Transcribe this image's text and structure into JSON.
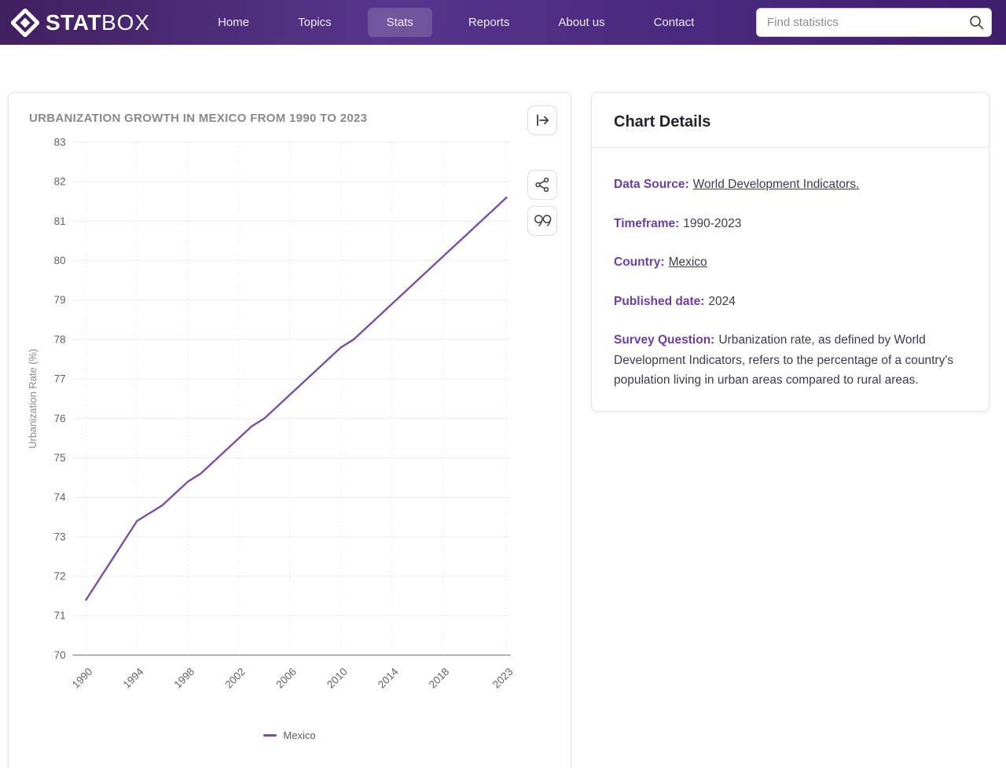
{
  "header": {
    "brand": {
      "bold": "STAT",
      "light": "BOX",
      "logo_icon": "diamond-icon"
    },
    "nav": [
      {
        "label": "Home",
        "active": false
      },
      {
        "label": "Topics",
        "active": false
      },
      {
        "label": "Stats",
        "active": true
      },
      {
        "label": "Reports",
        "active": false
      },
      {
        "label": "About us",
        "active": false
      },
      {
        "label": "Contact",
        "active": false
      }
    ],
    "search": {
      "placeholder": "Find statistics",
      "icon": "magnifier-icon"
    },
    "colors": {
      "bar_left": "#41205f",
      "bar_right": "#3e1d6e",
      "active_pill": "rgba(255,255,255,0.17)"
    }
  },
  "chart_card": {
    "toolbar": {
      "export_icon": "arrow-from-bar-icon",
      "share_icon": "share-nodes-icon",
      "cite_icon": "double-quote-icon"
    }
  },
  "chart_data": {
    "type": "line",
    "title": "URBANIZATION GROWTH IN MEXICO FROM 1990 TO 2023",
    "xlabel": "",
    "ylabel": "Urbanization Rate (%)",
    "ylim": [
      70,
      83
    ],
    "y_ticks": [
      70,
      71,
      72,
      73,
      74,
      75,
      76,
      77,
      78,
      79,
      80,
      81,
      82,
      83
    ],
    "x_tick_labels": [
      "1990",
      "1994",
      "1998",
      "2002",
      "2006",
      "2010",
      "2014",
      "2018",
      "2023"
    ],
    "grid": true,
    "legend_position": "bottom",
    "series": [
      {
        "name": "Mexico",
        "color": "#7b4fa0",
        "x": [
          1990,
          1991,
          1992,
          1993,
          1994,
          1995,
          1996,
          1997,
          1998,
          1999,
          2000,
          2001,
          2002,
          2003,
          2004,
          2005,
          2006,
          2007,
          2008,
          2009,
          2010,
          2011,
          2012,
          2013,
          2014,
          2015,
          2016,
          2017,
          2018,
          2019,
          2020,
          2021,
          2022,
          2023
        ],
        "values": [
          71.4,
          71.9,
          72.4,
          72.9,
          73.4,
          73.6,
          73.8,
          74.1,
          74.4,
          74.6,
          74.9,
          75.2,
          75.5,
          75.8,
          76.0,
          76.3,
          76.6,
          76.9,
          77.2,
          77.5,
          77.8,
          78.0,
          78.3,
          78.6,
          78.9,
          79.2,
          79.5,
          79.8,
          80.1,
          80.4,
          80.7,
          81.0,
          81.3,
          81.6
        ]
      }
    ]
  },
  "details_card": {
    "title": "Chart Details",
    "fields": [
      {
        "label": "Data Source:",
        "value": "World Development Indicators.",
        "link": true
      },
      {
        "label": "Timeframe:",
        "value": "1990-2023",
        "link": false
      },
      {
        "label": "Country:",
        "value": "Mexico",
        "link": true
      },
      {
        "label": "Published date:",
        "value": "2024",
        "link": false
      },
      {
        "label": "Survey Question:",
        "value": "Urbanization rate, as defined by World Development Indicators, refers to the percentage of a country's population living in urban areas compared to rural areas.",
        "link": false
      }
    ]
  }
}
